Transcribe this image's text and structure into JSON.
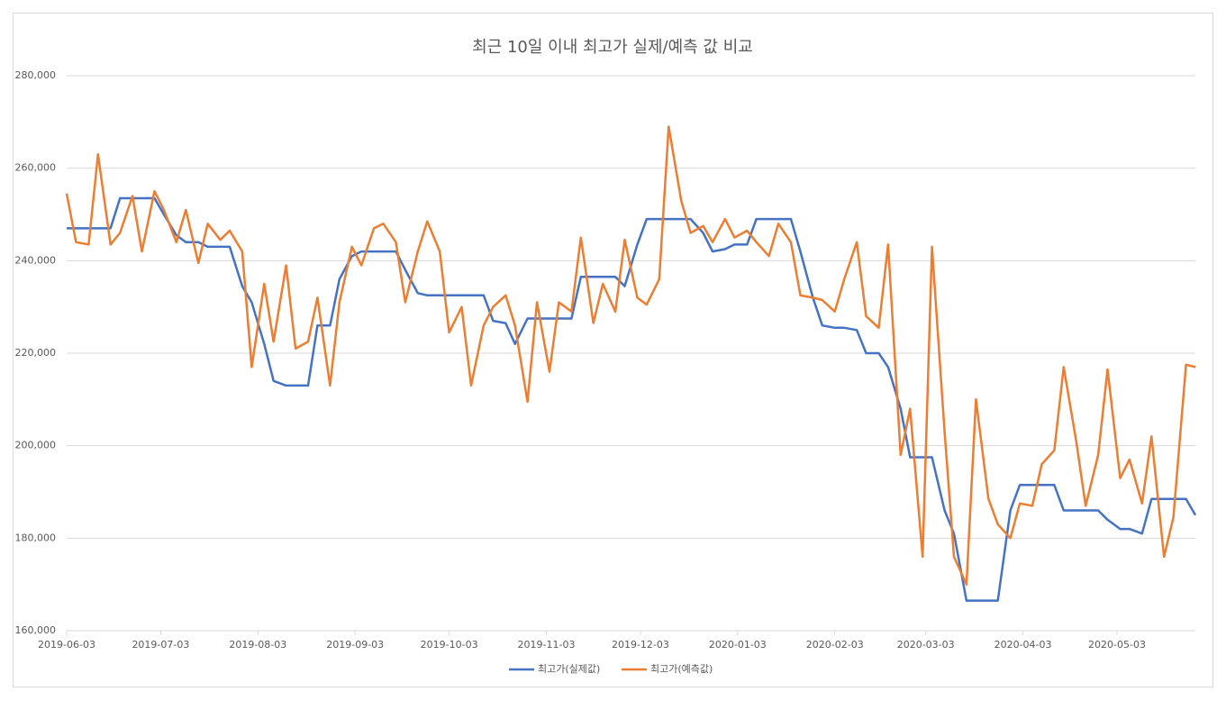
{
  "chart_data": {
    "type": "line",
    "title": "최근 10일 이내 최고가 실제/예측 값 비교",
    "x": [
      "2019-06-03",
      "2019-06-06",
      "2019-06-10",
      "2019-06-13",
      "2019-06-17",
      "2019-06-20",
      "2019-06-24",
      "2019-06-27",
      "2019-07-01",
      "2019-07-04",
      "2019-07-08",
      "2019-07-11",
      "2019-07-15",
      "2019-07-18",
      "2019-07-22",
      "2019-07-25",
      "2019-07-29",
      "2019-08-01",
      "2019-08-05",
      "2019-08-08",
      "2019-08-12",
      "2019-08-15",
      "2019-08-19",
      "2019-08-22",
      "2019-08-26",
      "2019-08-29",
      "2019-09-02",
      "2019-09-05",
      "2019-09-09",
      "2019-09-12",
      "2019-09-16",
      "2019-09-19",
      "2019-09-23",
      "2019-09-26",
      "2019-09-30",
      "2019-10-03",
      "2019-10-07",
      "2019-10-10",
      "2019-10-14",
      "2019-10-17",
      "2019-10-21",
      "2019-10-24",
      "2019-10-28",
      "2019-10-31",
      "2019-11-04",
      "2019-11-07",
      "2019-11-11",
      "2019-11-14",
      "2019-11-18",
      "2019-11-21",
      "2019-11-25",
      "2019-11-28",
      "2019-12-02",
      "2019-12-05",
      "2019-12-09",
      "2019-12-12",
      "2019-12-16",
      "2019-12-19",
      "2019-12-23",
      "2019-12-26",
      "2019-12-30",
      "2020-01-02",
      "2020-01-06",
      "2020-01-09",
      "2020-01-13",
      "2020-01-16",
      "2020-01-20",
      "2020-01-23",
      "2020-01-27",
      "2020-01-30",
      "2020-02-03",
      "2020-02-06",
      "2020-02-10",
      "2020-02-13",
      "2020-02-17",
      "2020-02-20",
      "2020-02-24",
      "2020-02-27",
      "2020-03-02",
      "2020-03-05",
      "2020-03-09",
      "2020-03-12",
      "2020-03-16",
      "2020-03-19",
      "2020-03-23",
      "2020-03-26",
      "2020-03-30",
      "2020-04-02",
      "2020-04-06",
      "2020-04-09",
      "2020-04-13",
      "2020-04-16",
      "2020-04-20",
      "2020-04-23",
      "2020-04-27",
      "2020-04-30",
      "2020-05-04",
      "2020-05-07",
      "2020-05-11",
      "2020-05-14",
      "2020-05-18",
      "2020-05-21",
      "2020-05-25",
      "2020-05-28"
    ],
    "series": [
      {
        "name": "최고가(실제값)",
        "color": "#4472c4",
        "values": [
          247000,
          247000,
          247000,
          247000,
          247000,
          253500,
          253500,
          253500,
          253500,
          250000,
          245500,
          244000,
          244000,
          243000,
          243000,
          243000,
          234500,
          231000,
          222000,
          214000,
          213000,
          213000,
          213000,
          226000,
          226000,
          236000,
          241000,
          242000,
          242000,
          242000,
          242000,
          238000,
          233000,
          232500,
          232500,
          232500,
          232500,
          232500,
          232500,
          227000,
          226500,
          222000,
          227500,
          227500,
          227500,
          227500,
          227500,
          236500,
          236500,
          236500,
          236500,
          234500,
          243500,
          249000,
          249000,
          249000,
          249000,
          249000,
          246000,
          242000,
          242500,
          243500,
          243500,
          249000,
          249000,
          249000,
          249000,
          242000,
          232000,
          226000,
          225500,
          225500,
          225000,
          220000,
          220000,
          217000,
          208000,
          197500,
          197500,
          197500,
          186000,
          181000,
          166500,
          166500,
          166500,
          166500,
          186000,
          191500,
          191500,
          191500,
          191500,
          186000,
          186000,
          186000,
          186000,
          184000,
          182000,
          182000,
          181000,
          188500,
          188500,
          188500,
          188500,
          185000
        ]
      },
      {
        "name": "최고가(예측값)",
        "color": "#ed7d31",
        "values": [
          254500,
          244000,
          243500,
          263000,
          243500,
          246000,
          254000,
          242000,
          255000,
          251000,
          244000,
          251000,
          239500,
          248000,
          244500,
          246500,
          242000,
          217000,
          235000,
          222500,
          239000,
          221000,
          222500,
          232000,
          213000,
          231000,
          243000,
          239000,
          247000,
          248000,
          244000,
          231000,
          242000,
          248500,
          242000,
          224500,
          230000,
          213000,
          226000,
          230000,
          232500,
          226000,
          209500,
          231000,
          216000,
          231000,
          229000,
          245000,
          226500,
          235000,
          229000,
          244500,
          232000,
          230500,
          236000,
          269000,
          253000,
          246000,
          247500,
          244000,
          249000,
          245000,
          246500,
          244000,
          241000,
          248000,
          244000,
          232500,
          232000,
          231500,
          229000,
          236000,
          244000,
          228000,
          225500,
          243500,
          198000,
          208000,
          176000,
          243000,
          203000,
          176000,
          170000,
          210000,
          188500,
          183000,
          180000,
          187500,
          187000,
          196000,
          199000,
          217000,
          201000,
          187000,
          198000,
          216500,
          193000,
          197000,
          187500,
          202000,
          176000,
          184500,
          217500,
          217000
        ]
      }
    ],
    "xlim": [
      "2019-06-03",
      "2020-05-28"
    ],
    "xticks": [
      "2019-06-03",
      "2019-07-03",
      "2019-08-03",
      "2019-09-03",
      "2019-10-03",
      "2019-11-03",
      "2019-12-03",
      "2020-01-03",
      "2020-02-03",
      "2020-03-03",
      "2020-04-03",
      "2020-05-03"
    ],
    "ylim": [
      160000,
      280000
    ],
    "yticks": [
      {
        "value": 160000,
        "label": "160,000"
      },
      {
        "value": 180000,
        "label": "180,000"
      },
      {
        "value": 200000,
        "label": "200,000"
      },
      {
        "value": 220000,
        "label": "220,000"
      },
      {
        "value": 240000,
        "label": "240,000"
      },
      {
        "value": 260000,
        "label": "260,000"
      },
      {
        "value": 280000,
        "label": "280,000"
      }
    ],
    "grid": true,
    "legend": "bottom"
  }
}
